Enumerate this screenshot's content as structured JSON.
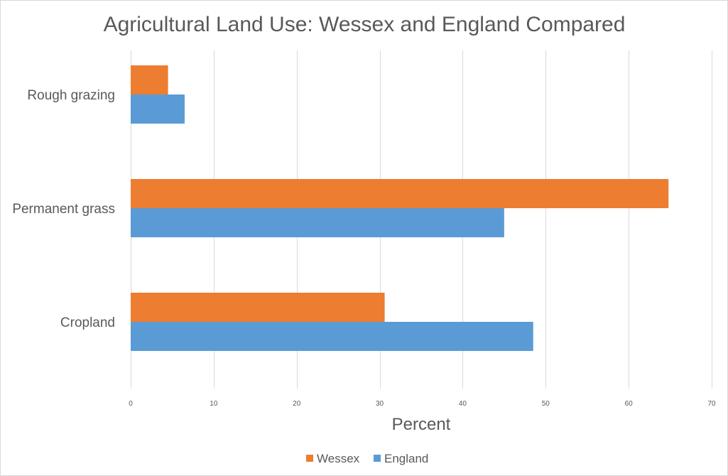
{
  "chart_data": {
    "type": "bar",
    "orientation": "horizontal",
    "title": "Agricultural Land Use: Wessex and England Compared",
    "xlabel": "Percent",
    "ylabel": "",
    "xlim": [
      0,
      70
    ],
    "ticks": [
      0,
      10,
      20,
      30,
      40,
      50,
      60,
      70
    ],
    "grid": true,
    "legend_position": "bottom",
    "categories": [
      "Rough grazing",
      "Permanent grass",
      "Cropland"
    ],
    "series": [
      {
        "name": "Wessex",
        "color": "#ED7D31",
        "values": [
          4.5,
          64.8,
          30.6
        ]
      },
      {
        "name": "England",
        "color": "#5B9BD5",
        "values": [
          6.5,
          45.0,
          48.5
        ]
      }
    ]
  }
}
